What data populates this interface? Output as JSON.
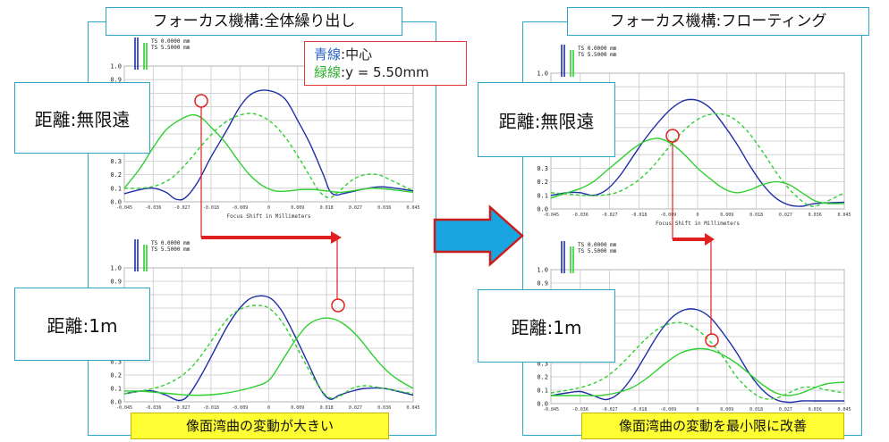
{
  "left": {
    "title": "フォーカス機構:全体繰り出し",
    "label_infinity": "距離:無限遠",
    "label_1m": "距離:1m",
    "caption": "像面湾曲の変動が大きい",
    "note": {
      "blue_word": "青線",
      "blue_rest": ":中心",
      "green_word": "緑線",
      "green_rest": ":y = 5.50mm"
    }
  },
  "right": {
    "title": "フォーカス機構:フローティング",
    "label_infinity": "距離:無限遠",
    "label_1m": "距離:1m",
    "caption": "像面湾曲の変動を最小限に改善"
  },
  "colors": {
    "blue": "#1f2fa8",
    "green": "#2fd02f",
    "marker": "#e02020",
    "arrow_fill": "#19a5e0",
    "arrow_stroke": "#c81e1e",
    "caption_bg": "#ffff33",
    "frame": "#2aa6c8"
  },
  "chart_data": [
    {
      "id": "left-top",
      "type": "line",
      "legend": [
        "TS 0.0000 mm",
        "TS 5.5000 mm"
      ],
      "xlabel": "Focus Shift in Millimeters",
      "x_ticks": [
        "-0.045",
        "-0.036",
        "-0.027",
        "-0.018",
        "-0.009",
        "0",
        "0.009",
        "0.018",
        "0.027",
        "0.036",
        "0.045"
      ],
      "y_ticks": [
        "0.0",
        "0.1",
        "0.2",
        "0.3",
        "0.4",
        "0.5",
        "0.6",
        "0.7",
        "0.8",
        "0.9",
        "1.0"
      ],
      "ylim": [
        0,
        1
      ],
      "xlim": [
        -0.045,
        0.045
      ],
      "series": [
        {
          "name": "TS 0.0000 mm",
          "style": "solid",
          "color": "blue",
          "x": [
            -0.045,
            -0.04,
            -0.036,
            -0.032,
            -0.029,
            -0.026,
            -0.022,
            -0.018,
            -0.013,
            -0.009,
            -0.005,
            0,
            0.005,
            0.009,
            0.013,
            0.017,
            0.019,
            0.021,
            0.023,
            0.027,
            0.031,
            0.036,
            0.045
          ],
          "y": [
            0.06,
            0.09,
            0.1,
            0.07,
            0.02,
            0.03,
            0.15,
            0.33,
            0.53,
            0.7,
            0.8,
            0.82,
            0.76,
            0.6,
            0.42,
            0.2,
            0.08,
            0.05,
            0.06,
            0.08,
            0.1,
            0.11,
            0.08
          ]
        },
        {
          "name": "TS 5.5000 mm (T)",
          "style": "solid",
          "color": "green",
          "x": [
            -0.045,
            -0.04,
            -0.036,
            -0.032,
            -0.028,
            -0.024,
            -0.021,
            -0.018,
            -0.014,
            -0.01,
            -0.006,
            -0.002,
            0.002,
            0.006,
            0.01,
            0.014,
            0.018,
            0.022,
            0.026,
            0.032,
            0.038,
            0.045
          ],
          "y": [
            0.1,
            0.25,
            0.4,
            0.53,
            0.6,
            0.64,
            0.62,
            0.55,
            0.45,
            0.32,
            0.2,
            0.12,
            0.08,
            0.08,
            0.09,
            0.09,
            0.08,
            0.07,
            0.08,
            0.1,
            0.09,
            0.07
          ]
        },
        {
          "name": "TS 5.5000 mm (S)",
          "style": "dashed",
          "color": "green",
          "x": [
            -0.045,
            -0.04,
            -0.035,
            -0.03,
            -0.025,
            -0.02,
            -0.015,
            -0.01,
            -0.005,
            0,
            0.005,
            0.01,
            0.013,
            0.016,
            0.019,
            0.022,
            0.026,
            0.03,
            0.034,
            0.038,
            0.045
          ],
          "y": [
            0.1,
            0.1,
            0.12,
            0.18,
            0.3,
            0.44,
            0.56,
            0.63,
            0.65,
            0.6,
            0.48,
            0.3,
            0.18,
            0.07,
            0.03,
            0.08,
            0.16,
            0.2,
            0.2,
            0.16,
            0.08
          ]
        }
      ]
    },
    {
      "id": "left-bottom",
      "type": "line",
      "legend": [
        "TS 0.0000 mm",
        "TS 5.5000 mm"
      ],
      "xlabel": "",
      "x_ticks": [
        "-0.045",
        "-0.036",
        "-0.027",
        "-0.018",
        "-0.009",
        "0",
        "0.009",
        "0.018",
        "0.027",
        "0.036",
        "0.045"
      ],
      "y_ticks": [
        "0.0",
        "0.1",
        "0.2",
        "0.3",
        "0.4",
        "0.5",
        "0.6",
        "0.7",
        "0.8",
        "0.9",
        "1.0"
      ],
      "ylim": [
        0,
        1
      ],
      "xlim": [
        -0.045,
        0.045
      ],
      "series": [
        {
          "name": "TS 0.0000 mm",
          "style": "solid",
          "color": "blue",
          "x": [
            -0.045,
            -0.04,
            -0.036,
            -0.032,
            -0.028,
            -0.025,
            -0.021,
            -0.017,
            -0.013,
            -0.009,
            -0.005,
            0,
            0.004,
            0.008,
            0.012,
            0.016,
            0.019,
            0.022,
            0.026,
            0.03,
            0.036,
            0.045
          ],
          "y": [
            0.06,
            0.08,
            0.08,
            0.05,
            0.01,
            0.05,
            0.2,
            0.38,
            0.56,
            0.7,
            0.78,
            0.78,
            0.68,
            0.5,
            0.3,
            0.1,
            0.02,
            0.05,
            0.08,
            0.1,
            0.1,
            0.05
          ]
        },
        {
          "name": "TS 5.5000 mm (T)",
          "style": "solid",
          "color": "green",
          "x": [
            -0.045,
            -0.04,
            -0.035,
            -0.03,
            -0.025,
            -0.02,
            -0.015,
            -0.01,
            -0.005,
            0,
            0.004,
            0.008,
            0.012,
            0.016,
            0.02,
            0.024,
            0.028,
            0.032,
            0.036,
            0.04,
            0.045
          ],
          "y": [
            0.08,
            0.08,
            0.07,
            0.06,
            0.05,
            0.05,
            0.06,
            0.08,
            0.11,
            0.16,
            0.3,
            0.45,
            0.57,
            0.62,
            0.62,
            0.57,
            0.48,
            0.36,
            0.25,
            0.17,
            0.1
          ]
        },
        {
          "name": "TS 5.5000 mm (S)",
          "style": "dashed",
          "color": "green",
          "x": [
            -0.045,
            -0.04,
            -0.036,
            -0.032,
            -0.028,
            -0.024,
            -0.02,
            -0.016,
            -0.012,
            -0.008,
            -0.004,
            0,
            0.004,
            0.008,
            0.012,
            0.016,
            0.019,
            0.022,
            0.026,
            0.03,
            0.036,
            0.045
          ],
          "y": [
            0.06,
            0.08,
            0.1,
            0.13,
            0.18,
            0.26,
            0.38,
            0.52,
            0.64,
            0.7,
            0.72,
            0.7,
            0.6,
            0.44,
            0.26,
            0.1,
            0.03,
            0.04,
            0.1,
            0.12,
            0.1,
            0.06
          ]
        }
      ]
    },
    {
      "id": "right-top",
      "type": "line",
      "legend": [
        "TS 0.0000 mm",
        "TS 5.5000 mm"
      ],
      "xlabel": "Focus Shift in Millimeters",
      "x_ticks": [
        "-0.045",
        "-0.036",
        "-0.027",
        "-0.018",
        "-0.009",
        "0",
        "0.009",
        "0.018",
        "0.027",
        "0.036",
        "0.045"
      ],
      "y_ticks": [
        "0.0",
        "0.1",
        "0.2",
        "0.3",
        "0.4",
        "0.5",
        "0.6",
        "0.7",
        "0.8",
        "0.9",
        "1.0"
      ],
      "ylim": [
        0,
        1
      ],
      "xlim": [
        -0.045,
        0.045
      ],
      "series": [
        {
          "name": "TS 0.0000 mm",
          "style": "solid",
          "color": "blue",
          "x": [
            -0.045,
            -0.04,
            -0.036,
            -0.032,
            -0.028,
            -0.024,
            -0.02,
            -0.016,
            -0.012,
            -0.008,
            -0.004,
            0,
            0.004,
            0.008,
            0.012,
            0.016,
            0.02,
            0.024,
            0.028,
            0.032,
            0.036,
            0.045
          ],
          "y": [
            0.1,
            0.12,
            0.12,
            0.1,
            0.14,
            0.24,
            0.38,
            0.52,
            0.64,
            0.74,
            0.8,
            0.8,
            0.74,
            0.62,
            0.48,
            0.32,
            0.18,
            0.08,
            0.03,
            0.02,
            0.04,
            0.05
          ]
        },
        {
          "name": "TS 5.5000 mm (T)",
          "style": "solid",
          "color": "green",
          "x": [
            -0.045,
            -0.04,
            -0.036,
            -0.032,
            -0.028,
            -0.024,
            -0.02,
            -0.016,
            -0.012,
            -0.008,
            -0.004,
            0,
            0.004,
            0.008,
            0.012,
            0.016,
            0.02,
            0.024,
            0.028,
            0.032,
            0.036,
            0.04,
            0.045
          ],
          "y": [
            0.08,
            0.12,
            0.15,
            0.2,
            0.28,
            0.36,
            0.44,
            0.5,
            0.52,
            0.48,
            0.4,
            0.3,
            0.22,
            0.15,
            0.12,
            0.14,
            0.18,
            0.2,
            0.18,
            0.12,
            0.06,
            0.04,
            0.04
          ]
        },
        {
          "name": "TS 5.5000 mm (S)",
          "style": "dashed",
          "color": "green",
          "x": [
            -0.045,
            -0.04,
            -0.035,
            -0.03,
            -0.025,
            -0.02,
            -0.015,
            -0.01,
            -0.005,
            0,
            0.005,
            0.01,
            0.015,
            0.02,
            0.025,
            0.03,
            0.035,
            0.04,
            0.045
          ],
          "y": [
            0.12,
            0.11,
            0.1,
            0.1,
            0.12,
            0.18,
            0.28,
            0.42,
            0.56,
            0.66,
            0.7,
            0.68,
            0.58,
            0.42,
            0.24,
            0.1,
            0.02,
            0.06,
            0.12
          ]
        }
      ]
    },
    {
      "id": "right-bottom",
      "type": "line",
      "legend": [
        "TS 0.0000 mm",
        "TS 5.5000 mm"
      ],
      "xlabel": "",
      "x_ticks": [
        "-0.045",
        "-0.036",
        "-0.027",
        "-0.018",
        "-0.009",
        "0",
        "0.009",
        "0.018",
        "0.027",
        "0.036",
        "0.045"
      ],
      "y_ticks": [
        "0.0",
        "0.1",
        "0.2",
        "0.3",
        "0.4",
        "0.5",
        "0.6",
        "0.7",
        "0.8",
        "0.9",
        "1.0"
      ],
      "ylim": [
        0,
        1
      ],
      "xlim": [
        -0.045,
        0.045
      ],
      "series": [
        {
          "name": "TS 0.0000 mm",
          "style": "solid",
          "color": "blue",
          "x": [
            -0.045,
            -0.04,
            -0.036,
            -0.032,
            -0.028,
            -0.024,
            -0.02,
            -0.016,
            -0.012,
            -0.008,
            -0.004,
            0,
            0.004,
            0.008,
            0.012,
            0.016,
            0.02,
            0.024,
            0.028,
            0.032,
            0.036,
            0.045
          ],
          "y": [
            0.06,
            0.08,
            0.09,
            0.06,
            0.03,
            0.08,
            0.2,
            0.36,
            0.52,
            0.64,
            0.7,
            0.7,
            0.64,
            0.52,
            0.38,
            0.22,
            0.1,
            0.03,
            0.01,
            0.02,
            0.02,
            0.02
          ]
        },
        {
          "name": "TS 5.5000 mm (T)",
          "style": "solid",
          "color": "green",
          "x": [
            -0.045,
            -0.04,
            -0.035,
            -0.03,
            -0.025,
            -0.02,
            -0.015,
            -0.01,
            -0.005,
            0,
            0.004,
            0.008,
            0.012,
            0.016,
            0.02,
            0.024,
            0.028,
            0.032,
            0.036,
            0.04,
            0.045
          ],
          "y": [
            0.06,
            0.06,
            0.06,
            0.06,
            0.08,
            0.12,
            0.2,
            0.3,
            0.38,
            0.41,
            0.4,
            0.36,
            0.3,
            0.22,
            0.14,
            0.08,
            0.06,
            0.08,
            0.12,
            0.15,
            0.16
          ]
        },
        {
          "name": "TS 5.5000 mm (S)",
          "style": "dashed",
          "color": "green",
          "x": [
            -0.045,
            -0.04,
            -0.036,
            -0.032,
            -0.028,
            -0.024,
            -0.02,
            -0.016,
            -0.012,
            -0.008,
            -0.004,
            0,
            0.004,
            0.008,
            0.012,
            0.016,
            0.02,
            0.024,
            0.028,
            0.032,
            0.036,
            0.04,
            0.045
          ],
          "y": [
            0.08,
            0.1,
            0.12,
            0.15,
            0.2,
            0.28,
            0.38,
            0.48,
            0.56,
            0.6,
            0.6,
            0.55,
            0.46,
            0.34,
            0.2,
            0.1,
            0.04,
            0.04,
            0.08,
            0.12,
            0.12,
            0.1,
            0.08
          ]
        }
      ]
    }
  ]
}
